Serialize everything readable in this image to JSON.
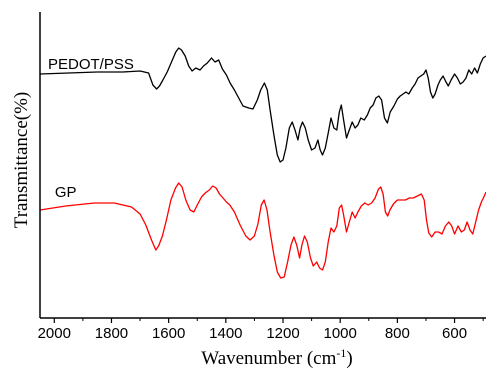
{
  "chart_data": {
    "type": "line",
    "xlabel": "Wavenumber  (cm",
    "xlabel_sup": "-1",
    "xlabel_close": ")",
    "ylabel": "Transmittance(%)",
    "xlim": [
      2050,
      490
    ],
    "x_reversed": true,
    "y_ticks_shown": false,
    "grid": false,
    "x_ticks": [
      {
        "value": 2000,
        "label": "2000"
      },
      {
        "value": 1800,
        "label": "1800"
      },
      {
        "value": 1600,
        "label": "1600"
      },
      {
        "value": 1400,
        "label": "1400"
      },
      {
        "value": 1200,
        "label": "1200"
      },
      {
        "value": 1000,
        "label": "1000"
      },
      {
        "value": 800,
        "label": "800"
      },
      {
        "value": 600,
        "label": "600"
      }
    ],
    "series": [
      {
        "name": "PEDOT/PSS",
        "color": "#000000",
        "label_at": [
          2050,
          64
        ],
        "points": [
          [
            2050,
            74
          ],
          [
            1950,
            73
          ],
          [
            1850,
            72
          ],
          [
            1760,
            72
          ],
          [
            1700,
            71
          ],
          [
            1670,
            73
          ],
          [
            1655,
            85
          ],
          [
            1642,
            89
          ],
          [
            1632,
            86
          ],
          [
            1620,
            80
          ],
          [
            1605,
            72
          ],
          [
            1590,
            62
          ],
          [
            1575,
            52
          ],
          [
            1565,
            48
          ],
          [
            1555,
            50
          ],
          [
            1542,
            56
          ],
          [
            1530,
            66
          ],
          [
            1518,
            71
          ],
          [
            1505,
            68
          ],
          [
            1490,
            70
          ],
          [
            1478,
            66
          ],
          [
            1465,
            63
          ],
          [
            1450,
            58
          ],
          [
            1438,
            62
          ],
          [
            1425,
            60
          ],
          [
            1412,
            69
          ],
          [
            1398,
            75
          ],
          [
            1385,
            83
          ],
          [
            1370,
            90
          ],
          [
            1355,
            98
          ],
          [
            1340,
            106
          ],
          [
            1320,
            108
          ],
          [
            1305,
            109
          ],
          [
            1290,
            100
          ],
          [
            1278,
            90
          ],
          [
            1265,
            83
          ],
          [
            1255,
            90
          ],
          [
            1245,
            110
          ],
          [
            1232,
            135
          ],
          [
            1220,
            155
          ],
          [
            1210,
            162
          ],
          [
            1200,
            160
          ],
          [
            1190,
            148
          ],
          [
            1178,
            128
          ],
          [
            1168,
            122
          ],
          [
            1158,
            130
          ],
          [
            1148,
            140
          ],
          [
            1140,
            128
          ],
          [
            1132,
            122
          ],
          [
            1122,
            128
          ],
          [
            1112,
            140
          ],
          [
            1100,
            150
          ],
          [
            1088,
            148
          ],
          [
            1078,
            140
          ],
          [
            1070,
            150
          ],
          [
            1062,
            155
          ],
          [
            1052,
            148
          ],
          [
            1040,
            130
          ],
          [
            1032,
            118
          ],
          [
            1022,
            128
          ],
          [
            1012,
            130
          ],
          [
            1003,
            112
          ],
          [
            996,
            105
          ],
          [
            988,
            120
          ],
          [
            978,
            138
          ],
          [
            968,
            130
          ],
          [
            958,
            122
          ],
          [
            948,
            128
          ],
          [
            938,
            125
          ],
          [
            928,
            118
          ],
          [
            916,
            120
          ],
          [
            905,
            115
          ],
          [
            895,
            108
          ],
          [
            885,
            105
          ],
          [
            875,
            98
          ],
          [
            865,
            96
          ],
          [
            855,
            100
          ],
          [
            845,
            118
          ],
          [
            835,
            123
          ],
          [
            825,
            112
          ],
          [
            812,
            106
          ],
          [
            800,
            99
          ],
          [
            790,
            96
          ],
          [
            780,
            94
          ],
          [
            770,
            92
          ],
          [
            760,
            94
          ],
          [
            748,
            88
          ],
          [
            738,
            84
          ],
          [
            728,
            78
          ],
          [
            718,
            76
          ],
          [
            708,
            74
          ],
          [
            700,
            70
          ],
          [
            692,
            78
          ],
          [
            684,
            92
          ],
          [
            676,
            98
          ],
          [
            668,
            94
          ],
          [
            658,
            85
          ],
          [
            650,
            80
          ],
          [
            640,
            76
          ],
          [
            630,
            82
          ],
          [
            622,
            86
          ],
          [
            612,
            80
          ],
          [
            600,
            74
          ],
          [
            590,
            78
          ],
          [
            580,
            84
          ],
          [
            570,
            82
          ],
          [
            560,
            78
          ],
          [
            550,
            70
          ],
          [
            540,
            74
          ],
          [
            530,
            68
          ],
          [
            520,
            73
          ],
          [
            510,
            64
          ],
          [
            500,
            58
          ],
          [
            490,
            56
          ]
        ]
      },
      {
        "name": "GP",
        "color": "#ff0000",
        "label_at": [
          2040,
          192
        ],
        "points": [
          [
            2050,
            210
          ],
          [
            1960,
            206
          ],
          [
            1860,
            203
          ],
          [
            1790,
            203
          ],
          [
            1730,
            207
          ],
          [
            1700,
            214
          ],
          [
            1680,
            225
          ],
          [
            1660,
            240
          ],
          [
            1645,
            250
          ],
          [
            1635,
            246
          ],
          [
            1622,
            236
          ],
          [
            1608,
            220
          ],
          [
            1592,
            200
          ],
          [
            1576,
            188
          ],
          [
            1565,
            183
          ],
          [
            1553,
            187
          ],
          [
            1540,
            200
          ],
          [
            1525,
            210
          ],
          [
            1512,
            212
          ],
          [
            1498,
            204
          ],
          [
            1485,
            197
          ],
          [
            1472,
            193
          ],
          [
            1458,
            190
          ],
          [
            1446,
            186
          ],
          [
            1434,
            188
          ],
          [
            1422,
            194
          ],
          [
            1410,
            198
          ],
          [
            1398,
            202
          ],
          [
            1386,
            205
          ],
          [
            1370,
            212
          ],
          [
            1350,
            225
          ],
          [
            1330,
            236
          ],
          [
            1315,
            240
          ],
          [
            1300,
            236
          ],
          [
            1288,
            224
          ],
          [
            1276,
            205
          ],
          [
            1266,
            200
          ],
          [
            1256,
            210
          ],
          [
            1245,
            232
          ],
          [
            1232,
            255
          ],
          [
            1220,
            272
          ],
          [
            1208,
            278
          ],
          [
            1196,
            277
          ],
          [
            1184,
            262
          ],
          [
            1172,
            245
          ],
          [
            1162,
            237
          ],
          [
            1152,
            245
          ],
          [
            1142,
            258
          ],
          [
            1134,
            245
          ],
          [
            1125,
            236
          ],
          [
            1115,
            242
          ],
          [
            1104,
            258
          ],
          [
            1094,
            266
          ],
          [
            1082,
            262
          ],
          [
            1072,
            268
          ],
          [
            1062,
            270
          ],
          [
            1052,
            262
          ],
          [
            1042,
            242
          ],
          [
            1032,
            228
          ],
          [
            1022,
            232
          ],
          [
            1012,
            226
          ],
          [
            1003,
            208
          ],
          [
            995,
            205
          ],
          [
            988,
            215
          ],
          [
            978,
            232
          ],
          [
            968,
            222
          ],
          [
            958,
            212
          ],
          [
            948,
            218
          ],
          [
            938,
            212
          ],
          [
            926,
            206
          ],
          [
            914,
            203
          ],
          [
            902,
            205
          ],
          [
            890,
            203
          ],
          [
            878,
            198
          ],
          [
            866,
            189
          ],
          [
            858,
            187
          ],
          [
            850,
            194
          ],
          [
            842,
            212
          ],
          [
            834,
            216
          ],
          [
            826,
            210
          ],
          [
            814,
            204
          ],
          [
            800,
            200
          ],
          [
            786,
            200
          ],
          [
            772,
            200
          ],
          [
            758,
            198
          ],
          [
            744,
            198
          ],
          [
            730,
            196
          ],
          [
            716,
            194
          ],
          [
            706,
            200
          ],
          [
            698,
            220
          ],
          [
            690,
            233
          ],
          [
            680,
            237
          ],
          [
            668,
            232
          ],
          [
            656,
            232
          ],
          [
            644,
            234
          ],
          [
            632,
            226
          ],
          [
            620,
            222
          ],
          [
            610,
            226
          ],
          [
            600,
            234
          ],
          [
            588,
            226
          ],
          [
            576,
            232
          ],
          [
            566,
            230
          ],
          [
            556,
            222
          ],
          [
            546,
            230
          ],
          [
            536,
            234
          ],
          [
            526,
            222
          ],
          [
            516,
            210
          ],
          [
            506,
            202
          ],
          [
            496,
            196
          ],
          [
            490,
            192
          ]
        ]
      }
    ]
  }
}
